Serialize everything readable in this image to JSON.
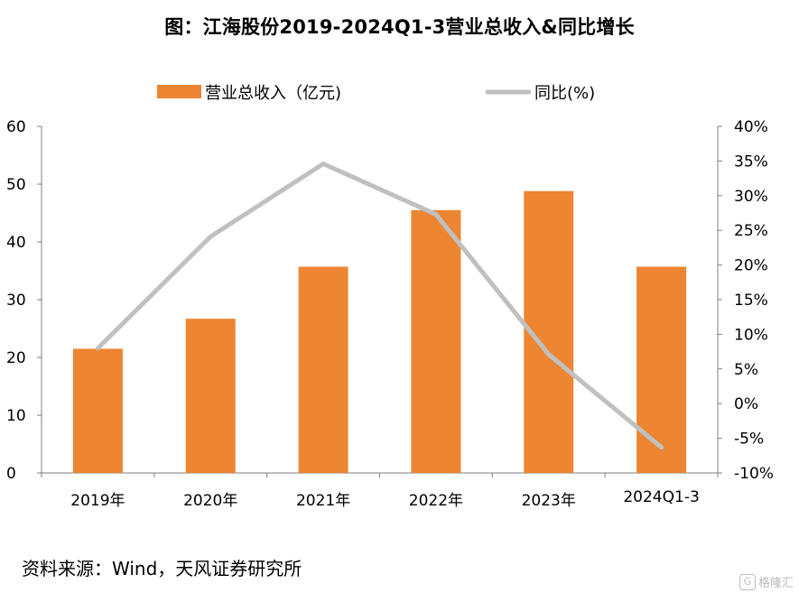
{
  "chart_data": {
    "type": "bar",
    "title": "图：江海股份2019-2024Q1-3营业总收入&同比增长",
    "categories": [
      "2019年",
      "2020年",
      "2021年",
      "2022年",
      "2023年",
      "2024Q1-3"
    ],
    "series": [
      {
        "name": "营业总收入（亿元)",
        "kind": "bar",
        "axis": "left",
        "color": "#ED8532",
        "values": [
          21.5,
          26.7,
          35.7,
          45.5,
          48.8,
          35.7
        ]
      },
      {
        "name": "同比(%)",
        "kind": "line",
        "axis": "right",
        "color": "#C0C0C0",
        "values": [
          8.0,
          24.1,
          34.6,
          27.3,
          7.1,
          -6.3
        ]
      }
    ],
    "y_left": {
      "ylim": [
        0,
        60
      ],
      "ticks": [
        "0",
        "10",
        "20",
        "30",
        "40",
        "50",
        "60"
      ]
    },
    "y_right": {
      "ylim": [
        -10,
        40
      ],
      "ticks": [
        "-10%",
        "-5%",
        "0%",
        "5%",
        "10%",
        "15%",
        "20%",
        "25%",
        "30%",
        "35%",
        "40%"
      ]
    },
    "legend_position": "top",
    "grid": false
  },
  "source_note": "资料来源：Wind，天风证券研究所",
  "watermark": "格隆汇"
}
